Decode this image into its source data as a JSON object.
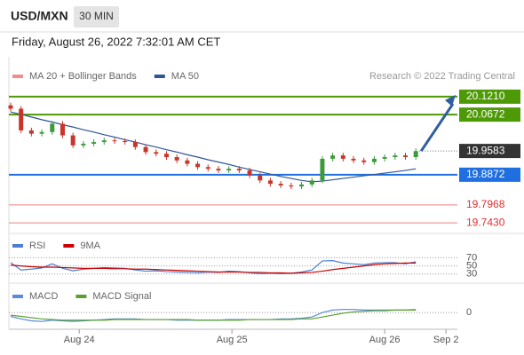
{
  "header": {
    "symbol": "USD/MXN",
    "interval": "30 MIN",
    "timestamp": "Friday, August 26, 2022 7:32:01 AM CET"
  },
  "chart_data": [
    {
      "type": "candlestick",
      "credit": "Research © 2022 Trading Central",
      "series": [
        {
          "name": "MA 20 + Bollinger Bands",
          "color": "#f08c8c"
        },
        {
          "name": "MA 50",
          "color": "#2f5597",
          "values": [
            20.075,
            20.068,
            20.06,
            20.052,
            20.045,
            20.037,
            20.03,
            20.022,
            20.015,
            20.007,
            20.0,
            19.992,
            19.985,
            19.977,
            19.97,
            19.962,
            19.955,
            19.947,
            19.94,
            19.932,
            19.925,
            19.918,
            19.91,
            19.903,
            19.896,
            19.889,
            19.882,
            19.876,
            19.87,
            19.866,
            19.868,
            19.872,
            19.876,
            19.88,
            19.884,
            19.888,
            19.892,
            19.896,
            19.9,
            19.905
          ]
        }
      ],
      "open": [
        20.095,
        20.085,
        20.02,
        20.01,
        20.015,
        20.04,
        20.005,
        19.975,
        19.98,
        19.985,
        19.99,
        19.988,
        19.985,
        19.97,
        19.955,
        19.95,
        19.94,
        19.93,
        19.92,
        19.91,
        19.905,
        19.9,
        19.905,
        19.9,
        19.885,
        19.87,
        19.86,
        19.855,
        19.852,
        19.858,
        19.87,
        19.935,
        19.945,
        19.935,
        19.93,
        19.925,
        19.935,
        19.94,
        19.945,
        19.94
      ],
      "high": [
        20.103,
        20.093,
        20.028,
        20.023,
        20.048,
        20.048,
        20.013,
        19.988,
        19.993,
        19.998,
        19.998,
        19.996,
        19.993,
        19.978,
        19.963,
        19.958,
        19.948,
        19.938,
        19.928,
        19.918,
        19.913,
        19.913,
        19.913,
        19.908,
        19.893,
        19.878,
        19.868,
        19.863,
        19.866,
        19.878,
        19.943,
        19.953,
        19.953,
        19.943,
        19.938,
        19.943,
        19.948,
        19.953,
        19.953,
        19.966
      ],
      "low": [
        20.077,
        20.012,
        20.002,
        20.002,
        20.007,
        19.997,
        19.967,
        19.967,
        19.972,
        19.977,
        19.98,
        19.977,
        19.962,
        19.947,
        19.942,
        19.932,
        19.922,
        19.912,
        19.902,
        19.897,
        19.892,
        19.892,
        19.892,
        19.877,
        19.862,
        19.852,
        19.847,
        19.844,
        19.844,
        19.85,
        19.862,
        19.927,
        19.927,
        19.922,
        19.917,
        19.917,
        19.927,
        19.932,
        19.932,
        19.932
      ],
      "close": [
        20.085,
        20.02,
        20.01,
        20.015,
        20.04,
        20.005,
        19.975,
        19.98,
        19.985,
        19.99,
        19.988,
        19.985,
        19.97,
        19.955,
        19.95,
        19.94,
        19.93,
        19.92,
        19.91,
        19.905,
        19.9,
        19.905,
        19.9,
        19.885,
        19.87,
        19.86,
        19.855,
        19.852,
        19.858,
        19.87,
        19.935,
        19.945,
        19.935,
        19.93,
        19.925,
        19.935,
        19.94,
        19.945,
        19.94,
        19.958
      ],
      "up_color": "#3c9a3c",
      "down_color": "#c8352b",
      "xlim": [
        0,
        43
      ],
      "ylim": [
        19.714,
        20.158
      ],
      "levels": [
        {
          "value": 20.121,
          "label": "20.1210",
          "color": "#4e9a06",
          "style": "box"
        },
        {
          "value": 20.0672,
          "label": "20.0672",
          "color": "#4e9a06",
          "style": "box"
        },
        {
          "value": 19.9583,
          "label": "19.9583",
          "color": "#333333",
          "style": "current"
        },
        {
          "value": 19.8872,
          "label": "19.8872",
          "color": "#1f6fe0",
          "style": "box"
        },
        {
          "value": 19.7968,
          "label": "19.7968",
          "color": "#e03030",
          "style": "text"
        },
        {
          "value": 19.743,
          "label": "19.7430",
          "color": "#e03030",
          "style": "text"
        }
      ]
    },
    {
      "type": "line",
      "series": [
        {
          "name": "RSI",
          "color": "#4a7fd0",
          "values": [
            58,
            40,
            42,
            45,
            55,
            44,
            38,
            42,
            44,
            46,
            45,
            44,
            40,
            37,
            38,
            36,
            35,
            34,
            33,
            35,
            34,
            37,
            36,
            33,
            31,
            32,
            31,
            32,
            35,
            40,
            62,
            63,
            57,
            55,
            53,
            57,
            58,
            58,
            55,
            60
          ]
        },
        {
          "name": "9MA",
          "color": "#cc0000",
          "values": [
            52,
            50,
            48,
            47,
            47,
            46,
            45,
            44,
            44,
            44,
            43,
            43,
            42,
            42,
            41,
            40,
            39,
            38,
            37,
            36,
            35,
            35,
            35,
            34,
            34,
            33,
            33,
            32,
            33,
            34,
            37,
            41,
            44,
            47,
            50,
            53,
            55,
            56,
            57,
            57
          ]
        }
      ],
      "xlim": [
        0,
        43
      ],
      "ylim": [
        10,
        110
      ],
      "yticks": [
        70,
        50,
        30
      ]
    },
    {
      "type": "line",
      "series": [
        {
          "name": "MACD",
          "color": "#5b8ad8",
          "values": [
            -0.006,
            -0.01,
            -0.013,
            -0.014,
            -0.012,
            -0.013,
            -0.014,
            -0.013,
            -0.012,
            -0.011,
            -0.01,
            -0.01,
            -0.01,
            -0.011,
            -0.011,
            -0.011,
            -0.012,
            -0.012,
            -0.012,
            -0.012,
            -0.012,
            -0.011,
            -0.011,
            -0.011,
            -0.011,
            -0.011,
            -0.01,
            -0.01,
            -0.009,
            -0.007,
            0.0,
            0.004,
            0.005,
            0.005,
            0.004,
            0.004,
            0.004,
            0.004,
            0.004,
            0.005
          ]
        },
        {
          "name": "MACD Signal",
          "color": "#5aa02c",
          "values": [
            -0.004,
            -0.006,
            -0.008,
            -0.01,
            -0.011,
            -0.012,
            -0.012,
            -0.012,
            -0.012,
            -0.012,
            -0.011,
            -0.011,
            -0.011,
            -0.011,
            -0.011,
            -0.011,
            -0.011,
            -0.011,
            -0.012,
            -0.012,
            -0.012,
            -0.012,
            -0.012,
            -0.011,
            -0.011,
            -0.011,
            -0.011,
            -0.011,
            -0.01,
            -0.01,
            -0.007,
            -0.004,
            -0.001,
            0.001,
            0.002,
            0.003,
            0.003,
            0.004,
            0.004,
            0.004
          ]
        }
      ],
      "xlim": [
        0,
        43
      ],
      "ylim": [
        -0.025,
        0.02
      ],
      "yticks": [
        0
      ],
      "xticks": [
        {
          "value": 6.6,
          "label": "Aug 24"
        },
        {
          "value": 21.3,
          "label": "Aug 25"
        },
        {
          "value": 36,
          "label": "Aug 26"
        },
        {
          "value": 41.9,
          "label": "Sep 2"
        }
      ]
    }
  ]
}
